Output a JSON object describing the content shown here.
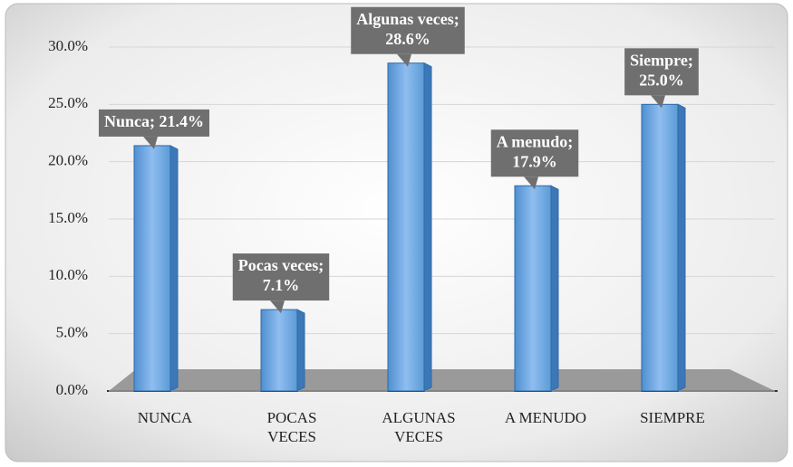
{
  "chart_data": {
    "type": "bar",
    "categories": [
      "NUNCA",
      "POCAS VECES",
      "ALGUNAS VECES",
      "A MENUDO",
      "SIEMPRE"
    ],
    "values": [
      21.4,
      7.1,
      28.6,
      17.9,
      25.0
    ],
    "value_labels": [
      [
        "Nunca; 21.4%"
      ],
      [
        "Pocas veces;",
        "7.1%"
      ],
      [
        "Algunas veces;",
        "28.6%"
      ],
      [
        "A menudo;",
        "17.9%"
      ],
      [
        "Siempre;",
        "25.0%"
      ]
    ],
    "color": "#5b9bd5",
    "ylim": [
      0,
      30
    ],
    "yticks": [
      {
        "value": 0,
        "label": "0.0%"
      },
      {
        "value": 5,
        "label": "5.0%"
      },
      {
        "value": 10,
        "label": "10.0%"
      },
      {
        "value": 15,
        "label": "15.0%"
      },
      {
        "value": 20,
        "label": "20.0%"
      },
      {
        "value": 25,
        "label": "25.0%"
      },
      {
        "value": 30,
        "label": "30.0%"
      }
    ],
    "grid": true
  }
}
